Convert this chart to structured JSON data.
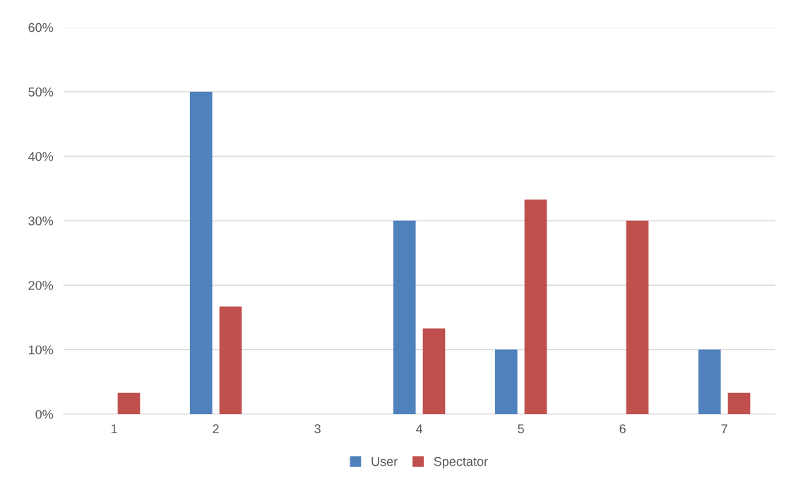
{
  "chart_data": {
    "type": "bar",
    "categories": [
      "1",
      "2",
      "3",
      "4",
      "5",
      "6",
      "7"
    ],
    "series": [
      {
        "name": "User",
        "color": "#4f81bd",
        "values": [
          0,
          50,
          0,
          30,
          10,
          0,
          10
        ]
      },
      {
        "name": "Spectator",
        "color": "#c0504d",
        "values": [
          3.3,
          16.7,
          0,
          13.3,
          33.3,
          30,
          3.3
        ]
      }
    ],
    "ylim": [
      0,
      60
    ],
    "yticks": [
      {
        "value": 0,
        "label": "0%"
      },
      {
        "value": 10,
        "label": "10%"
      },
      {
        "value": 20,
        "label": "20%"
      },
      {
        "value": 30,
        "label": "30%"
      },
      {
        "value": 40,
        "label": "40%"
      },
      {
        "value": 50,
        "label": "50%"
      },
      {
        "value": 60,
        "label": "60%"
      }
    ],
    "grid": "y",
    "legend": "bottom"
  }
}
